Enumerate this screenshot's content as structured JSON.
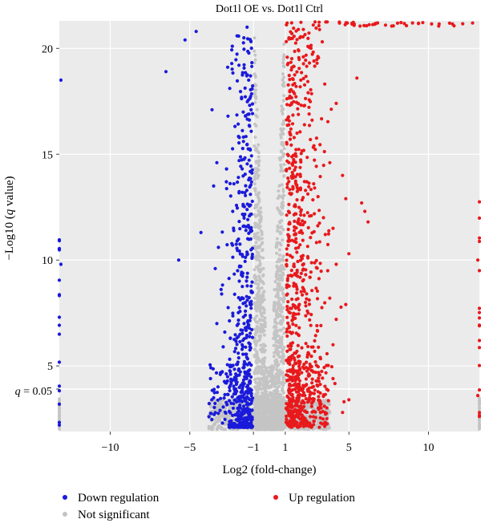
{
  "chart_data": {
    "type": "scatter",
    "title": "Dot1l OE vs. Dot1l Ctrl",
    "xlabel": "Log2 (fold-change)",
    "ylabel_parts": [
      "−Log10 (",
      "q",
      " value)"
    ],
    "xlim": [
      -13.2,
      13.2
    ],
    "ylim": [
      1.9,
      21.3
    ],
    "x_ticks": [
      -10,
      -5,
      -1,
      1,
      5,
      10
    ],
    "x_tick_labels": [
      "−10",
      "−5",
      "−1",
      "1",
      "5",
      "10"
    ],
    "y_ticks": [
      5,
      10,
      15,
      20
    ],
    "y_tick_labels": [
      "5",
      "10",
      "15",
      "20"
    ],
    "q_threshold_label_parts": [
      "q",
      " = 0.05"
    ],
    "q_threshold_y": 1.3,
    "fold_change_thresholds": [
      -1,
      1
    ],
    "grid": true,
    "legend_position": "bottom",
    "colors": {
      "down": "#1a1adb",
      "up": "#e8191c",
      "not_significant": "#c4c4c4",
      "panel": "#ebebeb",
      "grid": "#ffffff"
    },
    "series": [
      {
        "name": "Down regulation",
        "key": "down",
        "points": [
          [
            -6.5,
            18.9
          ],
          [
            -5.3,
            20.4
          ],
          [
            -4.6,
            20.8
          ],
          [
            -5.7,
            10.0
          ],
          [
            -3.6,
            17.1
          ],
          [
            -3.3,
            14.6
          ],
          [
            -3.5,
            13.5
          ],
          [
            -4.3,
            11.3
          ],
          [
            -3.2,
            10.6
          ],
          [
            -3.4,
            9.6
          ],
          [
            -3.0,
            8.4
          ],
          [
            -3.3,
            7.0
          ],
          [
            -2.8,
            6.6
          ],
          [
            -2.9,
            5.9
          ],
          [
            -3.7,
            4.4
          ],
          [
            -3.5,
            3.5
          ],
          [
            -3.1,
            2.9
          ],
          [
            -3.8,
            2.6
          ],
          [
            -2.6,
            16.8
          ],
          [
            -2.7,
            13.7
          ],
          [
            -2.3,
            12.3
          ],
          [
            -1.6,
            20.5
          ],
          [
            -1.5,
            16.8
          ],
          [
            -1.9,
            14.7
          ],
          [
            -1.7,
            13.2
          ],
          [
            -1.6,
            12.1
          ],
          [
            -1.4,
            21.0
          ],
          [
            -1.3,
            18.5
          ],
          [
            -1.2,
            15.2
          ],
          [
            -13.1,
            18.5
          ],
          [
            -13.1,
            9.8
          ],
          [
            -13.2,
            7.3
          ],
          [
            -13.2,
            6.5
          ]
        ]
      },
      {
        "name": "Up regulation",
        "key": "up",
        "points": [
          [
            5.5,
            18.6
          ],
          [
            4.2,
            17.4
          ],
          [
            3.8,
            14.6
          ],
          [
            4.6,
            14.0
          ],
          [
            5.8,
            12.7
          ],
          [
            6.0,
            12.3
          ],
          [
            6.2,
            11.8
          ],
          [
            4.8,
            12.9
          ],
          [
            4.0,
            11.5
          ],
          [
            3.4,
            12.0
          ],
          [
            5.0,
            10.3
          ],
          [
            4.2,
            9.8
          ],
          [
            3.8,
            8.2
          ],
          [
            4.8,
            7.9
          ],
          [
            4.2,
            7.2
          ],
          [
            4.0,
            6.0
          ],
          [
            3.2,
            5.4
          ],
          [
            4.0,
            4.4
          ],
          [
            3.6,
            3.9
          ],
          [
            2.8,
            19.4
          ],
          [
            2.5,
            16.9
          ],
          [
            2.8,
            15.4
          ],
          [
            7.3,
            21.1
          ],
          [
            6.8,
            21.2
          ],
          [
            9.0,
            21.2
          ],
          [
            13.1,
            10.0
          ],
          [
            13.2,
            6.2
          ],
          [
            13.1,
            3.6
          ],
          [
            4.6,
            2.8
          ],
          [
            5.0,
            3.4
          ]
        ]
      },
      {
        "name": "Not significant",
        "key": "not_significant",
        "points": []
      }
    ]
  }
}
